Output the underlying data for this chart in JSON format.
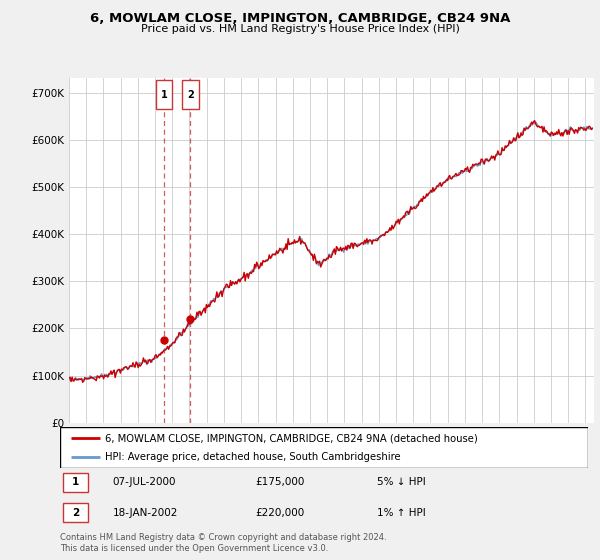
{
  "title": "6, MOWLAM CLOSE, IMPINGTON, CAMBRIDGE, CB24 9NA",
  "subtitle": "Price paid vs. HM Land Registry's House Price Index (HPI)",
  "ylabel_ticks": [
    "£0",
    "£100K",
    "£200K",
    "£300K",
    "£400K",
    "£500K",
    "£600K",
    "£700K"
  ],
  "ytick_values": [
    0,
    100000,
    200000,
    300000,
    400000,
    500000,
    600000,
    700000
  ],
  "ylim": [
    0,
    730000
  ],
  "xlim_start": 1995.0,
  "xlim_end": 2025.5,
  "transactions": [
    {
      "label": "1",
      "date": "07-JUL-2000",
      "price": 175000,
      "relation": "5% ↓ HPI",
      "year": 2000.52
    },
    {
      "label": "2",
      "date": "18-JAN-2002",
      "price": 220000,
      "relation": "1% ↑ HPI",
      "year": 2002.05
    }
  ],
  "legend_line1": "6, MOWLAM CLOSE, IMPINGTON, CAMBRIDGE, CB24 9NA (detached house)",
  "legend_line2": "HPI: Average price, detached house, South Cambridgeshire",
  "footer": "Contains HM Land Registry data © Crown copyright and database right 2024.\nThis data is licensed under the Open Government Licence v3.0.",
  "line_color_red": "#cc0000",
  "line_color_blue": "#6699cc",
  "bg_color": "#f0f0f0",
  "plot_bg_color": "#ffffff",
  "grid_color": "#cccccc",
  "marker_box_color": "#cc3333",
  "trans1_year": 2000.52,
  "trans1_price": 175000,
  "trans2_year": 2002.05,
  "trans2_price": 220000
}
